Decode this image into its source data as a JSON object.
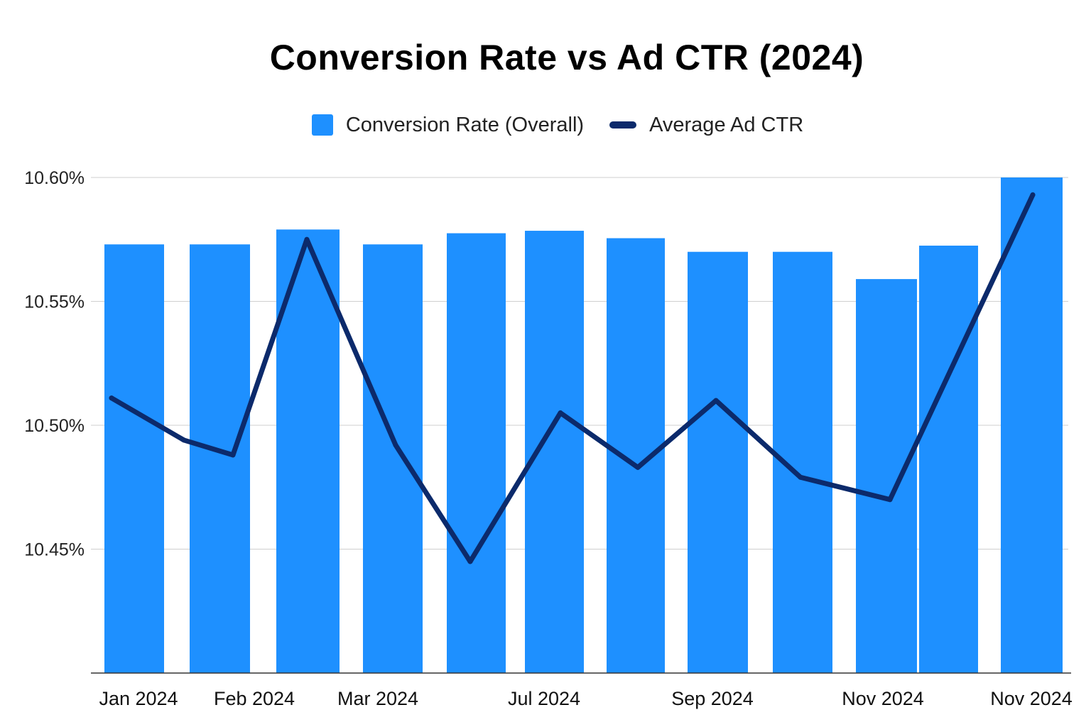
{
  "chart_data": {
    "type": "bar",
    "title": "Conversion Rate vs Ad CTR (2024)",
    "xlabel": "",
    "ylabel": "",
    "ylim": [
      10.4,
      10.6
    ],
    "yticks": [
      10.45,
      10.5,
      10.55,
      10.6
    ],
    "ytick_labels": [
      "10.45%",
      "10.50%",
      "10.55%",
      "10.60%"
    ],
    "xtick_labels": [
      "Jan 2024",
      "Feb 2024",
      "Mar 2024",
      "Jul 2024",
      "Sep 2024",
      "Nov 2024",
      "Nov 2024"
    ],
    "grid": true,
    "legend_position": "top-center",
    "series": [
      {
        "name": "Conversion Rate (Overall)",
        "type": "bar",
        "color": "#1e90ff",
        "values": [
          10.573,
          10.573,
          10.579,
          10.573,
          10.5775,
          10.5785,
          10.5755,
          10.57,
          10.57,
          10.559,
          10.5725,
          10.6
        ]
      },
      {
        "name": "Average Ad CTR",
        "type": "line",
        "color": "#0c2a6b",
        "values": [
          10.511,
          10.494,
          10.488,
          10.575,
          10.492,
          10.445,
          10.505,
          10.483,
          10.51,
          10.479,
          10.47,
          10.593
        ]
      }
    ]
  }
}
